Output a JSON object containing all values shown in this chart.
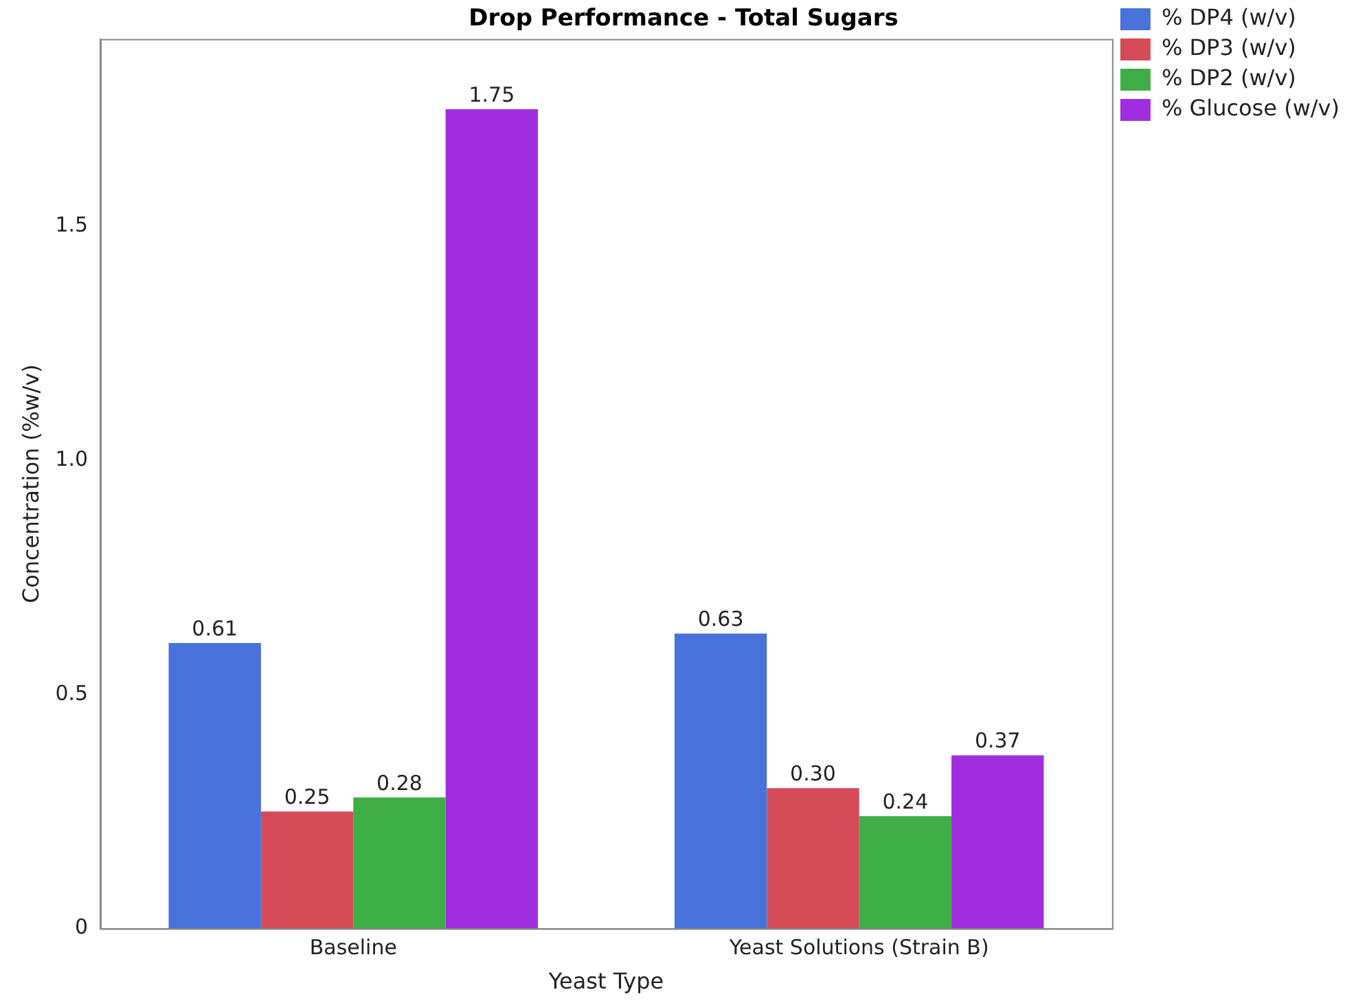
{
  "chart_data": {
    "type": "bar",
    "title": "Drop Performance - Total Sugars",
    "xlabel": "Yeast Type",
    "ylabel": "Concentration (%w/v)",
    "categories": [
      "Baseline",
      "Yeast Solutions (Strain B)"
    ],
    "series": [
      {
        "name": "% DP4 (w/v)",
        "color": "#4a72db",
        "values": [
          0.61,
          0.63
        ],
        "value_labels": [
          "0.61",
          "0.63"
        ]
      },
      {
        "name": "% DP3 (w/v)",
        "color": "#d54a57",
        "values": [
          0.25,
          0.3
        ],
        "value_labels": [
          "0.25",
          "0.30"
        ]
      },
      {
        "name": "% DP2 (w/v)",
        "color": "#3fae47",
        "values": [
          0.28,
          0.24
        ],
        "value_labels": [
          "0.28",
          "0.24"
        ]
      },
      {
        "name": "% Glucose (w/v)",
        "color": "#a02ede",
        "values": [
          1.75,
          0.37
        ],
        "value_labels": [
          "1.75",
          "0.37"
        ]
      }
    ],
    "ylim": [
      0,
      1.9
    ],
    "yticks": [
      0,
      0.5,
      {
        "value": 1,
        "label": "1.0"
      },
      1.5
    ],
    "grid": false,
    "legend": "top right"
  }
}
